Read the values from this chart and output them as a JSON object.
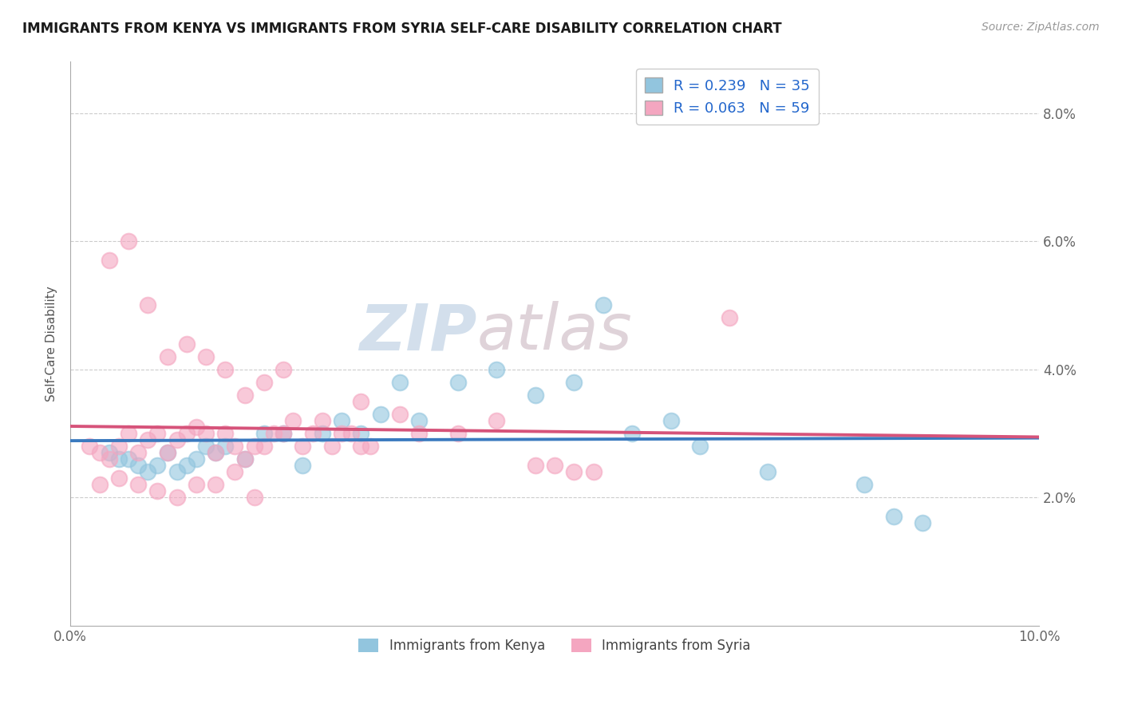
{
  "title": "IMMIGRANTS FROM KENYA VS IMMIGRANTS FROM SYRIA SELF-CARE DISABILITY CORRELATION CHART",
  "source": "Source: ZipAtlas.com",
  "ylabel": "Self-Care Disability",
  "xlim": [
    0.0,
    0.1
  ],
  "ylim": [
    0.0,
    0.088
  ],
  "kenya_color": "#92c5de",
  "syria_color": "#f4a6c0",
  "kenya_line_color": "#3a7abf",
  "syria_line_color": "#d6537a",
  "kenya_R": 0.239,
  "kenya_N": 35,
  "syria_R": 0.063,
  "syria_N": 59,
  "watermark_zip": "ZIP",
  "watermark_atlas": "atlas",
  "kenya_x": [
    0.004,
    0.005,
    0.006,
    0.007,
    0.008,
    0.009,
    0.01,
    0.011,
    0.012,
    0.013,
    0.014,
    0.015,
    0.016,
    0.018,
    0.02,
    0.022,
    0.024,
    0.026,
    0.028,
    0.03,
    0.032,
    0.034,
    0.036,
    0.04,
    0.044,
    0.048,
    0.052,
    0.055,
    0.058,
    0.062,
    0.065,
    0.072,
    0.082,
    0.085,
    0.088
  ],
  "kenya_y": [
    0.027,
    0.026,
    0.026,
    0.025,
    0.024,
    0.025,
    0.027,
    0.024,
    0.025,
    0.026,
    0.028,
    0.027,
    0.028,
    0.026,
    0.03,
    0.03,
    0.025,
    0.03,
    0.032,
    0.03,
    0.033,
    0.038,
    0.032,
    0.038,
    0.04,
    0.036,
    0.038,
    0.05,
    0.03,
    0.032,
    0.028,
    0.024,
    0.022,
    0.017,
    0.016
  ],
  "syria_x": [
    0.002,
    0.003,
    0.004,
    0.005,
    0.006,
    0.007,
    0.008,
    0.009,
    0.01,
    0.011,
    0.012,
    0.013,
    0.014,
    0.015,
    0.016,
    0.017,
    0.018,
    0.019,
    0.02,
    0.021,
    0.022,
    0.023,
    0.024,
    0.025,
    0.026,
    0.027,
    0.028,
    0.029,
    0.03,
    0.031,
    0.004,
    0.006,
    0.008,
    0.01,
    0.012,
    0.014,
    0.016,
    0.018,
    0.02,
    0.022,
    0.03,
    0.034,
    0.036,
    0.04,
    0.044,
    0.048,
    0.05,
    0.052,
    0.054,
    0.003,
    0.005,
    0.007,
    0.009,
    0.011,
    0.013,
    0.015,
    0.017,
    0.019,
    0.068
  ],
  "syria_y": [
    0.028,
    0.027,
    0.026,
    0.028,
    0.03,
    0.027,
    0.029,
    0.03,
    0.027,
    0.029,
    0.03,
    0.031,
    0.03,
    0.027,
    0.03,
    0.028,
    0.026,
    0.028,
    0.028,
    0.03,
    0.03,
    0.032,
    0.028,
    0.03,
    0.032,
    0.028,
    0.03,
    0.03,
    0.028,
    0.028,
    0.057,
    0.06,
    0.05,
    0.042,
    0.044,
    0.042,
    0.04,
    0.036,
    0.038,
    0.04,
    0.035,
    0.033,
    0.03,
    0.03,
    0.032,
    0.025,
    0.025,
    0.024,
    0.024,
    0.022,
    0.023,
    0.022,
    0.021,
    0.02,
    0.022,
    0.022,
    0.024,
    0.02,
    0.048
  ]
}
